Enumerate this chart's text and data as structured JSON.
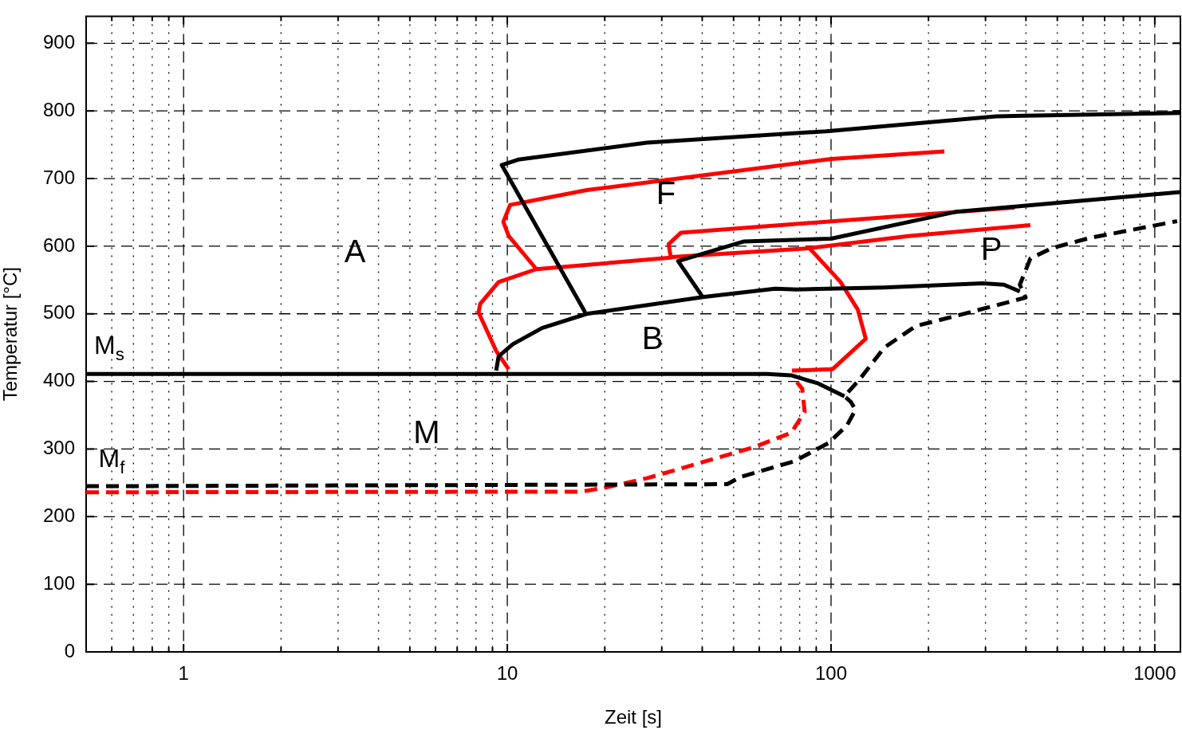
{
  "chart_data": {
    "type": "line",
    "xlabel": "Zeit [s]",
    "ylabel": "Temperatur [°C]",
    "log": "x",
    "grid": true,
    "legend": false,
    "marker": "none",
    "xlim": [
      0.5,
      1200
    ],
    "ylim": [
      0,
      940
    ],
    "xticks": [
      {
        "value": 0.6,
        "label": null
      },
      {
        "value": 0.7,
        "label": null
      },
      {
        "value": 0.8,
        "label": null
      },
      {
        "value": 0.9,
        "label": null
      },
      1,
      {
        "value": 2,
        "label": null
      },
      {
        "value": 3,
        "label": null
      },
      {
        "value": 4,
        "label": null
      },
      {
        "value": 5,
        "label": null
      },
      {
        "value": 6,
        "label": null
      },
      {
        "value": 7,
        "label": null
      },
      {
        "value": 8,
        "label": null
      },
      {
        "value": 9,
        "label": null
      },
      10,
      {
        "value": 20,
        "label": null
      },
      {
        "value": 30,
        "label": null
      },
      {
        "value": 40,
        "label": null
      },
      {
        "value": 50,
        "label": null
      },
      {
        "value": 60,
        "label": null
      },
      {
        "value": 70,
        "label": null
      },
      {
        "value": 80,
        "label": null
      },
      {
        "value": 90,
        "label": null
      },
      100,
      {
        "value": 200,
        "label": null
      },
      {
        "value": 300,
        "label": null
      },
      {
        "value": 400,
        "label": null
      },
      {
        "value": 500,
        "label": null
      },
      {
        "value": 600,
        "label": null
      },
      {
        "value": 700,
        "label": null
      },
      {
        "value": 800,
        "label": null
      },
      {
        "value": 900,
        "label": null
      },
      1000
    ],
    "yticks": [
      0,
      100,
      200,
      300,
      400,
      500,
      600,
      700,
      800,
      900
    ],
    "series": [
      {
        "color": "#000000",
        "line_style": "solid",
        "x": [
          1200,
          324,
          96.7,
          27,
          10.8,
          9.61,
          17.4
        ],
        "values": [
          797,
          792,
          770,
          753,
          728,
          720,
          502
        ]
      },
      {
        "color": "#000000",
        "line_style": "solid",
        "x": [
          9.24,
          9.4,
          10.4,
          12.8,
          17.6,
          40.6,
          67.2,
          78.4,
          146,
          294,
          342,
          383
        ],
        "values": [
          416,
          437,
          455,
          479,
          500,
          525,
          537,
          536,
          539,
          545,
          543,
          533
        ]
      },
      {
        "color": "#000000",
        "line_style": "solid",
        "x": [
          40.1,
          33.7,
          53.9,
          100,
          244,
          1200
        ],
        "values": [
          525,
          578,
          607,
          611,
          651,
          680
        ]
      },
      {
        "color": "#000000",
        "line_style": "solid",
        "x": [
          0.5,
          59,
          63.5,
          75.3,
          91.3,
          110
        ],
        "values": [
          411,
          411,
          411,
          409,
          397,
          378
        ]
      },
      {
        "color": "#000000",
        "line_style": "dashed",
        "x": [
          0.5,
          47.8,
          52.7,
          77,
          98.3,
          112,
          119,
          115,
          110,
          123,
          146,
          183,
          244,
          399,
          383,
          413,
          481,
          628,
          1172
        ],
        "values": [
          245,
          248,
          259,
          282,
          309,
          335,
          358,
          370,
          378,
          404,
          450,
          482,
          497,
          524,
          543,
          582,
          597,
          612,
          637
        ]
      },
      {
        "color": "#ff0000",
        "line_style": "dashed",
        "x": [
          0.5,
          16.9,
          20.1,
          27.1,
          39.7,
          58,
          75.3,
          82.9,
          81.5,
          78.4
        ],
        "values": [
          236,
          237,
          243,
          257,
          280,
          303,
          324,
          355,
          389,
          399
        ]
      },
      {
        "color": "#ff0000",
        "line_style": "solid",
        "x": [
          224,
          100,
          33.7,
          17.6,
          10.2,
          9.72,
          10.1,
          12.3
        ],
        "values": [
          740,
          729,
          700,
          683,
          661,
          636,
          615,
          566
        ]
      },
      {
        "color": "#ff0000",
        "line_style": "solid",
        "x": [
          369,
          34.4,
          31.5,
          32,
          12.3,
          9.4,
          8.25,
          8.15,
          9.24,
          10.1
        ],
        "values": [
          657,
          620,
          603,
          583,
          566,
          547,
          515,
          502,
          445,
          418
        ]
      },
      {
        "color": "#ff0000",
        "line_style": "solid",
        "x": [
          32.3,
          85.8,
          173,
          413
        ],
        "values": [
          584,
          597,
          615,
          631
        ]
      },
      {
        "color": "#ff0000",
        "line_style": "solid",
        "x": [
          85.8,
          107,
          121,
          128,
          101,
          75.7
        ],
        "values": [
          597,
          547,
          506,
          463,
          418,
          416
        ]
      }
    ],
    "annotations": [
      "A",
      "F",
      "P",
      "B",
      "M",
      "M$_{s}$",
      "M$_{f}$"
    ]
  }
}
